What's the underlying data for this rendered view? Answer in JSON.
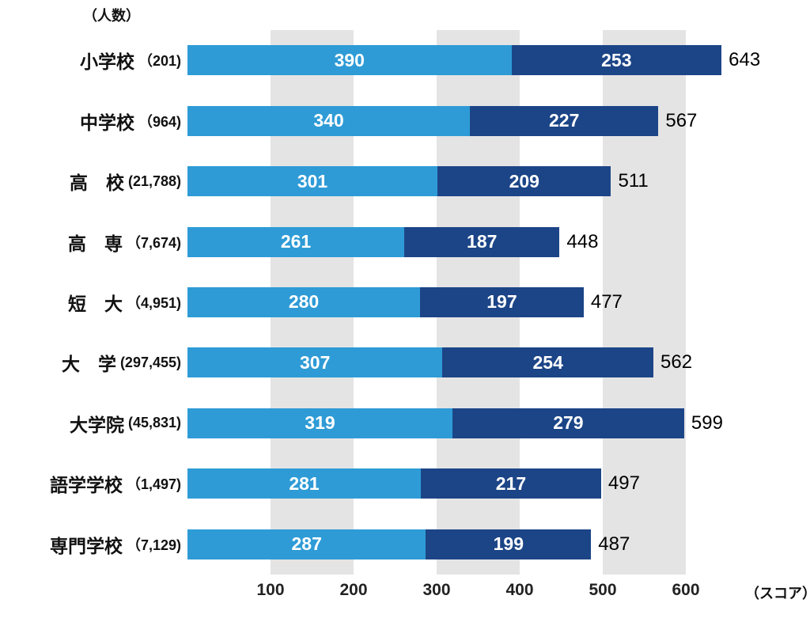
{
  "chart_data": {
    "type": "bar",
    "orientation": "horizontal",
    "stacked": true,
    "title": "",
    "unit_label_top": "（人数）",
    "unit_label_bottom": "（スコア）",
    "x_ticks": [
      100,
      200,
      300,
      400,
      500,
      600
    ],
    "x_max": 660,
    "grid_stripes": "vertical gray bands at 100-200, 300-400, 500-600",
    "legend_position": "none",
    "series_names": [
      "segment1",
      "segment2"
    ],
    "colors": {
      "segment1": "#2e9bd6",
      "segment2": "#1c4587",
      "stripe": "#e4e4e4"
    },
    "rows": [
      {
        "label": "小学校",
        "count": "（201)",
        "seg1": 390,
        "seg2": 253,
        "total": 643
      },
      {
        "label": "中学校",
        "count": "（964)",
        "seg1": 340,
        "seg2": 227,
        "total": 567
      },
      {
        "label": "高　校",
        "count": "(21,788)",
        "seg1": 301,
        "seg2": 209,
        "total": 511
      },
      {
        "label": "高　専",
        "count": "（7,674)",
        "seg1": 261,
        "seg2": 187,
        "total": 448
      },
      {
        "label": "短　大",
        "count": "（4,951)",
        "seg1": 280,
        "seg2": 197,
        "total": 477
      },
      {
        "label": "大　学",
        "count": "(297,455)",
        "seg1": 307,
        "seg2": 254,
        "total": 562
      },
      {
        "label": "大学院",
        "count": "(45,831)",
        "seg1": 319,
        "seg2": 279,
        "total": 599
      },
      {
        "label": "語学学校",
        "count": "（1,497)",
        "seg1": 281,
        "seg2": 217,
        "total": 497
      },
      {
        "label": "専門学校",
        "count": "（7,129)",
        "seg1": 287,
        "seg2": 199,
        "total": 487
      }
    ]
  }
}
